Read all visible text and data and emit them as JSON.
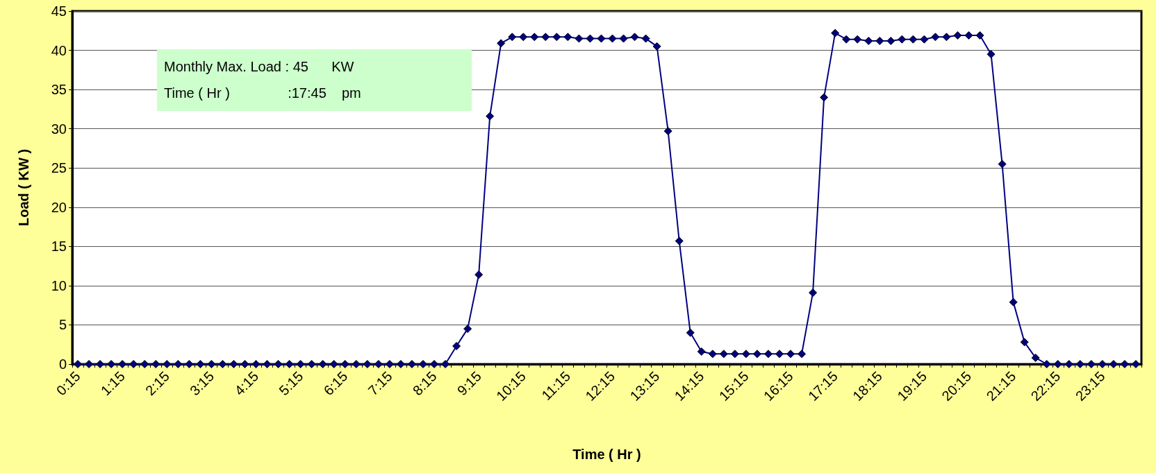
{
  "chart_data": {
    "type": "line",
    "xlabel": "Time ( Hr )",
    "ylabel": "Load ( KW )",
    "categories": [
      "0:15",
      null,
      null,
      null,
      "1:15",
      null,
      null,
      null,
      "2:15",
      null,
      null,
      null,
      "3:15",
      null,
      null,
      null,
      "4:15",
      null,
      null,
      null,
      "5:15",
      null,
      null,
      null,
      "6:15",
      null,
      null,
      null,
      "7:15",
      null,
      null,
      null,
      "8:15",
      null,
      null,
      null,
      "9:15",
      null,
      null,
      null,
      "10:15",
      null,
      null,
      null,
      "11:15",
      null,
      null,
      null,
      "12:15",
      null,
      null,
      null,
      "13:15",
      null,
      null,
      null,
      "14:15",
      null,
      null,
      null,
      "15:15",
      null,
      null,
      null,
      "16:15",
      null,
      null,
      null,
      "17:15",
      null,
      null,
      null,
      "18:15",
      null,
      null,
      null,
      "19:15",
      null,
      null,
      null,
      "20:15",
      null,
      null,
      null,
      "21:15",
      null,
      null,
      null,
      "22:15",
      null,
      null,
      null,
      "23:15",
      null,
      null,
      null
    ],
    "series": [
      {
        "color": "#000080",
        "values": [
          0,
          0,
          0,
          0,
          0,
          0,
          0,
          0,
          0,
          0,
          0,
          0,
          0,
          0,
          0,
          0,
          0,
          0,
          0,
          0,
          0,
          0,
          0,
          0,
          0,
          0,
          0,
          0,
          0,
          0,
          0,
          0,
          0,
          0,
          2.3,
          4.5,
          11.4,
          31.6,
          40.9,
          41.7,
          41.7,
          41.7,
          41.7,
          41.7,
          41.7,
          41.5,
          41.5,
          41.5,
          41.5,
          41.5,
          41.7,
          41.5,
          40.5,
          29.7,
          15.7,
          4.0,
          1.6,
          1.3,
          1.3,
          1.3,
          1.3,
          1.3,
          1.3,
          1.3,
          1.3,
          1.3,
          9.1,
          34.0,
          42.2,
          41.4,
          41.4,
          41.2,
          41.2,
          41.2,
          41.4,
          41.4,
          41.4,
          41.7,
          41.7,
          41.9,
          41.9,
          41.9,
          39.5,
          25.5,
          7.9,
          2.8,
          0.8,
          0,
          0,
          0,
          0,
          0,
          0,
          0,
          0,
          0
        ]
      }
    ],
    "ylim": [
      0,
      45
    ],
    "yticks": [
      0,
      5,
      10,
      15,
      20,
      25,
      30,
      35,
      40,
      45
    ],
    "grid": "y",
    "marker": "diamond",
    "line_style": "solid",
    "annotations": [
      "Monthly Max. Load : 45      KW",
      "Time ( Hr )               :17:45    pm"
    ]
  }
}
